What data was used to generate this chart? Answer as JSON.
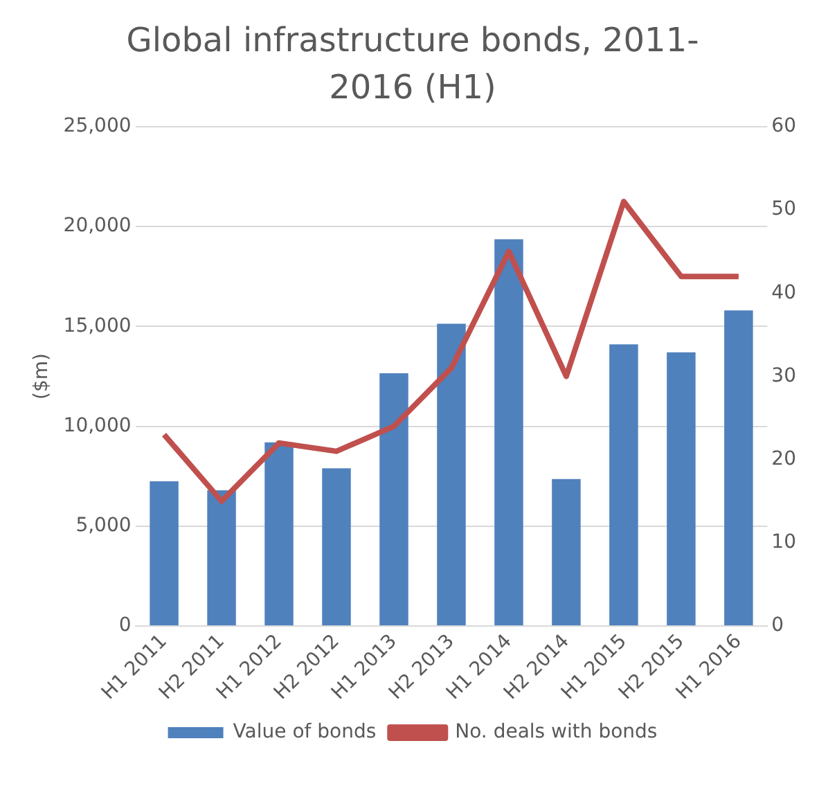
{
  "chart_data": {
    "type": "bar",
    "title": "Global infrastructure bonds, 2011-2016 (H1)",
    "ylabel": "($m)",
    "categories": [
      "H1 2011",
      "H2 2011",
      "H1 2012",
      "H2 2012",
      "H1 2013",
      "H2 2013",
      "H1 2014",
      "H2 2014",
      "H1 2015",
      "H2 2015",
      "H1 2016"
    ],
    "series": [
      {
        "name": "Value of bonds",
        "color": "#4f81bd",
        "values": [
          7250,
          6800,
          9200,
          7900,
          12650,
          15130,
          19360,
          7360,
          14100,
          13700,
          15800
        ]
      },
      {
        "name": "No. deals with bonds",
        "type": "line",
        "axis": "y2",
        "color": "#c0504d",
        "values": [
          23,
          15,
          22,
          21,
          24,
          31,
          45,
          30,
          51,
          42,
          42
        ]
      }
    ],
    "ylim": [
      0,
      25000
    ],
    "yticks": [
      0,
      {
        "value": 5000,
        "label": "5,000"
      },
      {
        "value": 10000,
        "label": "10,000"
      },
      {
        "value": 15000,
        "label": "15,000"
      },
      {
        "value": 20000,
        "label": "20,000"
      },
      {
        "value": 25000,
        "label": "25,000"
      }
    ],
    "y2lim": [
      0,
      60
    ],
    "y2ticks": [
      0,
      10,
      20,
      30,
      40,
      50,
      60
    ],
    "grid": "y",
    "legend": "bottom",
    "marker": "none"
  }
}
